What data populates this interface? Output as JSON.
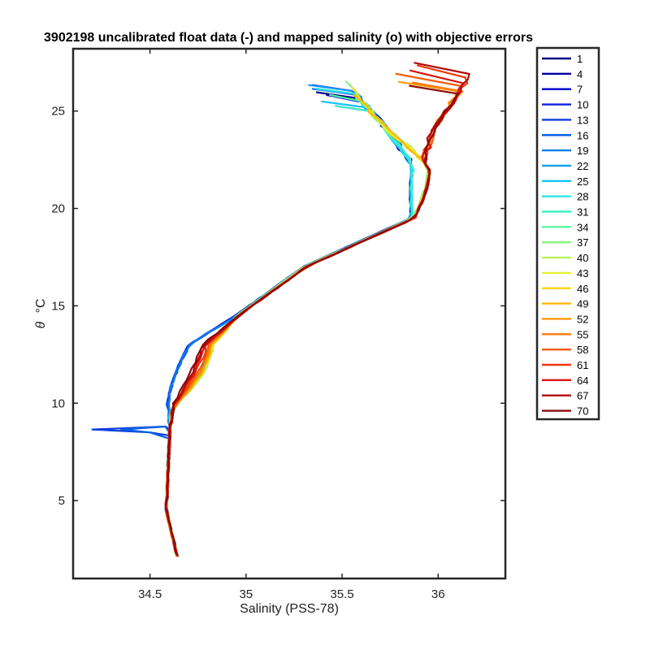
{
  "chart_data": {
    "type": "line",
    "title": "3902198 uncalibrated float data (-) and mapped salinity (o) with objective errors",
    "xlabel": "Salinity (PSS-78)",
    "ylabel_symbol": "θ",
    "ylabel_unit": "°C",
    "xlim": [
      34.1,
      36.35
    ],
    "ylim": [
      1,
      28.2
    ],
    "xticks": [
      34.5,
      35,
      35.5,
      36
    ],
    "xtick_labels": [
      "34.5",
      "35",
      "35.5",
      "36"
    ],
    "yticks": [
      5,
      10,
      15,
      20,
      25
    ],
    "ytick_labels": [
      "5",
      "10",
      "15",
      "20",
      "25"
    ],
    "grid": false,
    "legend_placement": "outside-right",
    "series": [
      {
        "name": "1",
        "color": "#000080"
      },
      {
        "name": "4",
        "color": "#0000a4"
      },
      {
        "name": "7",
        "color": "#0000c9"
      },
      {
        "name": "10",
        "color": "#0d1ed8"
      },
      {
        "name": "13",
        "color": "#0b3ee0"
      },
      {
        "name": "16",
        "color": "#0a5ee8"
      },
      {
        "name": "19",
        "color": "#0a7fef"
      },
      {
        "name": "22",
        "color": "#0a9ff6"
      },
      {
        "name": "25",
        "color": "#11c5f6"
      },
      {
        "name": "28",
        "color": "#2ee4e6"
      },
      {
        "name": "31",
        "color": "#3cf0c4"
      },
      {
        "name": "34",
        "color": "#5cf59c"
      },
      {
        "name": "37",
        "color": "#87f57a"
      },
      {
        "name": "40",
        "color": "#b6f457"
      },
      {
        "name": "43",
        "color": "#e6ef30"
      },
      {
        "name": "46",
        "color": "#fbd814"
      },
      {
        "name": "49",
        "color": "#fcb80a"
      },
      {
        "name": "52",
        "color": "#fb9a07"
      },
      {
        "name": "55",
        "color": "#fa7b08"
      },
      {
        "name": "58",
        "color": "#f65a09"
      },
      {
        "name": "61",
        "color": "#f0380b"
      },
      {
        "name": "64",
        "color": "#d7140e"
      },
      {
        "name": "67",
        "color": "#b00a0a"
      },
      {
        "name": "70",
        "color": "#8c0a0a"
      }
    ]
  }
}
